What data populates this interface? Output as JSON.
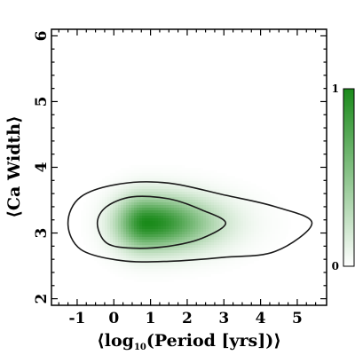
{
  "chart_data": {
    "type": "heatmap",
    "title": "",
    "xlabel_pre": "⟨log",
    "xlabel_sub": "10",
    "xlabel_post": "(Period [yrs])⟩",
    "ylabel": "⟨Ca Width⟩",
    "xlim": [
      -1.7,
      5.8
    ],
    "ylim": [
      1.9,
      6.1
    ],
    "xticks": [
      -1,
      0,
      1,
      2,
      3,
      4,
      5
    ],
    "xtick_labels": [
      "-1",
      "0",
      "1",
      "2",
      "3",
      "4",
      "5"
    ],
    "yticks": [
      2,
      3,
      4,
      5,
      6
    ],
    "ytick_labels": [
      "2",
      "3",
      "4",
      "5",
      "6"
    ],
    "colormap": {
      "low": "#ffffff",
      "high": "#1a8a1a"
    },
    "colorbar": {
      "ticks": [
        0,
        1
      ],
      "tick_labels": [
        "0",
        "1"
      ]
    },
    "density_peak": {
      "x": 0.9,
      "y": 3.15
    },
    "contours": [
      {
        "level": "inner",
        "points": [
          [
            -0.45,
            3.15
          ],
          [
            -0.2,
            3.4
          ],
          [
            0.5,
            3.55
          ],
          [
            1.5,
            3.52
          ],
          [
            2.4,
            3.35
          ],
          [
            3.05,
            3.15
          ],
          [
            2.4,
            2.92
          ],
          [
            1.5,
            2.8
          ],
          [
            0.5,
            2.77
          ],
          [
            -0.2,
            2.85
          ]
        ]
      },
      {
        "level": "outer",
        "points": [
          [
            -1.25,
            3.15
          ],
          [
            -0.9,
            3.55
          ],
          [
            0.2,
            3.75
          ],
          [
            1.5,
            3.76
          ],
          [
            3.0,
            3.58
          ],
          [
            4.4,
            3.4
          ],
          [
            5.4,
            3.15
          ],
          [
            4.4,
            2.72
          ],
          [
            3.0,
            2.63
          ],
          [
            1.5,
            2.57
          ],
          [
            0.2,
            2.58
          ],
          [
            -0.9,
            2.75
          ]
        ]
      }
    ],
    "grid": false
  }
}
